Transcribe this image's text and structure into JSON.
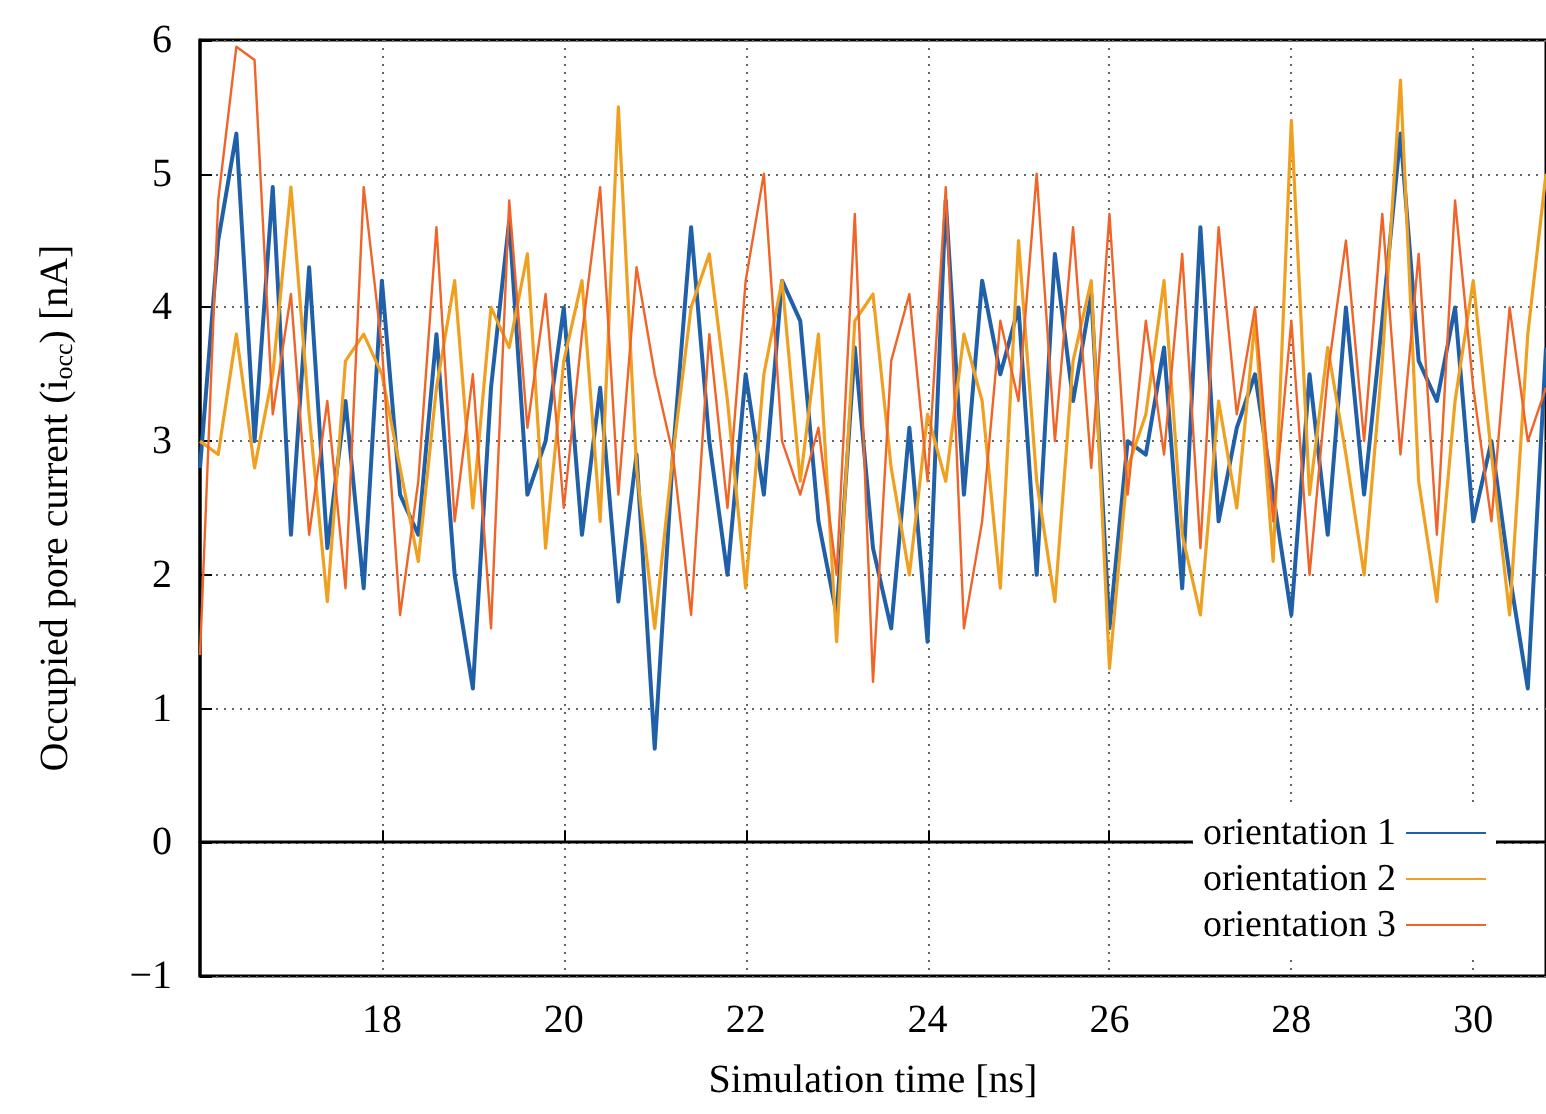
{
  "chart_data": {
    "type": "line",
    "xlabel": "Simulation time [ns]",
    "ylabel": "Occupied pore current (i$_{occ}$) [nA]",
    "x": [
      16.0,
      16.2,
      16.4,
      16.6,
      16.8,
      17.0,
      17.2,
      17.4,
      17.6,
      17.8,
      18.0,
      18.2,
      18.4,
      18.6,
      18.8,
      19.0,
      19.2,
      19.4,
      19.6,
      19.8,
      20.0,
      20.2,
      20.4,
      20.6,
      20.8,
      21.0,
      21.2,
      21.4,
      21.6,
      21.8,
      22.0,
      22.2,
      22.4,
      22.6,
      22.8,
      23.0,
      23.2,
      23.4,
      23.6,
      23.8,
      24.0,
      24.2,
      24.4,
      24.6,
      24.8,
      25.0,
      25.2,
      25.4,
      25.6,
      25.8,
      26.0,
      26.2,
      26.4,
      26.6,
      26.8,
      27.0,
      27.2,
      27.4,
      27.6,
      27.8,
      28.0,
      28.2,
      28.4,
      28.6,
      28.8,
      29.0,
      29.2,
      29.4,
      29.6,
      29.8,
      30.0,
      30.2,
      30.4,
      30.6,
      30.8
    ],
    "series": [
      {
        "name": "orientation 1",
        "color": "#2060a8",
        "values": [
          2.8,
          4.5,
          5.3,
          3.0,
          4.9,
          2.3,
          4.3,
          2.2,
          3.3,
          1.9,
          4.2,
          2.6,
          2.3,
          3.8,
          2.0,
          1.15,
          3.4,
          4.65,
          2.6,
          3.0,
          4.0,
          2.3,
          3.4,
          1.8,
          2.9,
          0.7,
          2.9,
          4.6,
          3.0,
          2.0,
          3.5,
          2.6,
          4.2,
          3.9,
          2.4,
          1.7,
          3.7,
          2.2,
          1.6,
          3.1,
          1.5,
          4.8,
          2.6,
          4.2,
          3.5,
          4.0,
          2.0,
          4.4,
          3.3,
          4.1,
          1.6,
          3.0,
          2.9,
          3.7,
          1.9,
          4.6,
          2.4,
          3.1,
          3.5,
          2.6,
          1.7,
          3.5,
          2.3,
          4.0,
          2.6,
          3.9,
          5.3,
          3.6,
          3.3,
          4.0,
          2.4,
          3.0,
          2.0,
          1.15,
          3.7
        ]
      },
      {
        "name": "orientation 2",
        "color": "#f0a020",
        "values": [
          3.0,
          2.9,
          3.8,
          2.8,
          3.5,
          4.9,
          3.2,
          1.8,
          3.6,
          3.8,
          3.5,
          2.8,
          2.1,
          3.4,
          4.2,
          2.5,
          4.0,
          3.7,
          4.4,
          2.2,
          3.6,
          4.2,
          2.4,
          5.5,
          2.8,
          1.6,
          2.9,
          4.0,
          4.4,
          3.3,
          1.9,
          3.5,
          4.2,
          2.7,
          3.8,
          1.5,
          3.9,
          4.1,
          2.8,
          2.0,
          3.2,
          2.7,
          3.8,
          3.3,
          1.9,
          4.5,
          2.7,
          1.8,
          3.6,
          4.2,
          1.3,
          2.8,
          3.2,
          4.2,
          2.3,
          1.7,
          3.3,
          2.5,
          3.9,
          2.1,
          5.4,
          2.6,
          3.7,
          2.9,
          2.0,
          3.6,
          5.7,
          2.7,
          1.8,
          3.3,
          4.2,
          2.9,
          1.7,
          3.8,
          5.0
        ]
      },
      {
        "name": "orientation 3",
        "color": "#f06428",
        "values": [
          1.4,
          4.8,
          5.95,
          5.85,
          3.2,
          4.1,
          2.3,
          3.3,
          1.9,
          4.9,
          3.7,
          1.7,
          2.7,
          4.6,
          2.4,
          3.5,
          1.6,
          4.8,
          3.1,
          4.1,
          2.5,
          3.8,
          4.9,
          2.6,
          4.3,
          3.5,
          2.9,
          1.7,
          3.8,
          2.5,
          4.2,
          5.0,
          3.0,
          2.6,
          3.1,
          2.0,
          4.7,
          1.2,
          3.6,
          4.1,
          2.7,
          4.9,
          1.6,
          2.4,
          3.9,
          3.3,
          5.0,
          3.0,
          4.6,
          2.8,
          4.7,
          2.6,
          3.9,
          2.9,
          4.4,
          2.2,
          4.6,
          3.2,
          4.0,
          2.4,
          3.9,
          2.0,
          3.5,
          4.5,
          3.0,
          4.7,
          2.9,
          4.4,
          2.3,
          4.8,
          3.4,
          2.4,
          4.0,
          3.0,
          3.4
        ]
      }
    ],
    "xlim": [
      16,
      30.8
    ],
    "xticks": [
      18,
      20,
      22,
      24,
      26,
      28,
      30
    ],
    "ylim": [
      -1,
      6
    ],
    "yticks": [
      {
        "value": -1,
        "label": "−1"
      },
      0,
      1,
      2,
      3,
      4,
      5,
      6
    ],
    "grid": true,
    "legend": "bottom right",
    "line_style": "solid",
    "marker": "none"
  }
}
